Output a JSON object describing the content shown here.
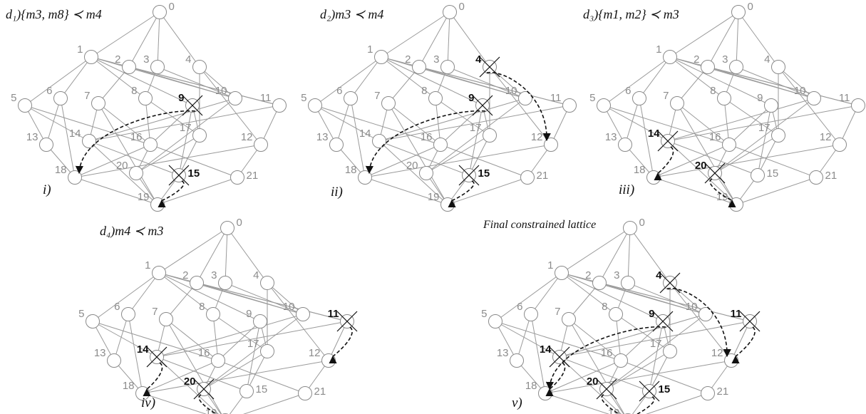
{
  "panels": [
    {
      "title": "d₁){m3, m8} ≺ m4",
      "label": "i)",
      "removed": [
        "9",
        "15"
      ],
      "arrows": [
        [
          "9",
          "18"
        ],
        [
          "15",
          "19"
        ]
      ]
    },
    {
      "title": "d₂)m3 ≺ m4",
      "label": "ii)",
      "removed": [
        "4",
        "9",
        "15"
      ],
      "arrows": [
        [
          "9",
          "18"
        ],
        [
          "4",
          "12"
        ],
        [
          "15",
          "19"
        ]
      ]
    },
    {
      "title": "d₃){m1, m2} ≺ m3",
      "label": "iii)",
      "removed": [
        "14",
        "20"
      ],
      "arrows": [
        [
          "14",
          "18"
        ],
        [
          "20",
          "19"
        ]
      ]
    },
    {
      "title": "d₄)m4 ≺ m3",
      "label": "iv)",
      "removed": [
        "11",
        "14",
        "20"
      ],
      "arrows": [
        [
          "11",
          "12"
        ],
        [
          "14",
          "18"
        ],
        [
          "20",
          "19"
        ]
      ]
    },
    {
      "title": "Final constrained lattice",
      "label": "v)",
      "removed": [
        "4",
        "9",
        "11",
        "14",
        "15",
        "20"
      ],
      "arrows": [
        [
          "9",
          "18"
        ],
        [
          "4",
          "12"
        ],
        [
          "11",
          "12"
        ],
        [
          "14",
          "18"
        ],
        [
          "20",
          "19"
        ],
        [
          "15",
          "19"
        ]
      ]
    }
  ],
  "lattice": {
    "nodes": [
      "0",
      "1",
      "2",
      "3",
      "4",
      "5",
      "6",
      "7",
      "8",
      "9",
      "10",
      "11",
      "12",
      "13",
      "14",
      "15",
      "16",
      "17",
      "18",
      "19",
      "20",
      "21"
    ],
    "edges": [
      [
        "0",
        "1"
      ],
      [
        "0",
        "2"
      ],
      [
        "0",
        "3"
      ],
      [
        "0",
        "4"
      ],
      [
        "1",
        "5"
      ],
      [
        "1",
        "6"
      ],
      [
        "1",
        "8"
      ],
      [
        "1",
        "9"
      ],
      [
        "1",
        "10"
      ],
      [
        "1",
        "11"
      ],
      [
        "2",
        "7"
      ],
      [
        "2",
        "10"
      ],
      [
        "2",
        "11"
      ],
      [
        "3",
        "8"
      ],
      [
        "3",
        "10"
      ],
      [
        "4",
        "10"
      ],
      [
        "4",
        "12"
      ],
      [
        "4",
        "17"
      ],
      [
        "5",
        "13"
      ],
      [
        "5",
        "14"
      ],
      [
        "5",
        "16"
      ],
      [
        "6",
        "13"
      ],
      [
        "6",
        "18"
      ],
      [
        "7",
        "14"
      ],
      [
        "7",
        "16"
      ],
      [
        "7",
        "19"
      ],
      [
        "8",
        "16"
      ],
      [
        "8",
        "17"
      ],
      [
        "9",
        "16"
      ],
      [
        "9",
        "17"
      ],
      [
        "9",
        "15"
      ],
      [
        "10",
        "14"
      ],
      [
        "10",
        "20"
      ],
      [
        "11",
        "12"
      ],
      [
        "11",
        "14"
      ],
      [
        "12",
        "18"
      ],
      [
        "12",
        "21"
      ],
      [
        "13",
        "18"
      ],
      [
        "14",
        "19"
      ],
      [
        "14",
        "15"
      ],
      [
        "16",
        "18"
      ],
      [
        "16",
        "20"
      ],
      [
        "16",
        "21"
      ],
      [
        "17",
        "20"
      ],
      [
        "17",
        "15"
      ],
      [
        "18",
        "19"
      ],
      [
        "20",
        "19"
      ],
      [
        "15",
        "19"
      ],
      [
        "21",
        "19"
      ]
    ]
  }
}
